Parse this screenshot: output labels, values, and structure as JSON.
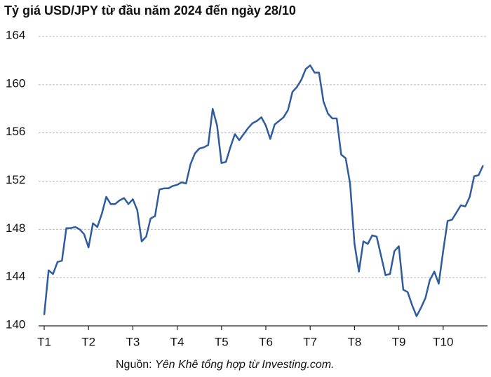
{
  "chart_data": {
    "type": "line",
    "title": "Tỷ giá USD/JPY từ đầu năm 2024 đến ngày 28/10",
    "source": {
      "prefix": "Nguồn:",
      "text": "Yên Khê tổng hợp từ Investing.com."
    },
    "categories": [
      "T1",
      null,
      null,
      null,
      null,
      null,
      null,
      null,
      null,
      null,
      "T2",
      null,
      null,
      null,
      null,
      null,
      null,
      null,
      null,
      null,
      "T3",
      null,
      null,
      null,
      null,
      null,
      null,
      null,
      null,
      null,
      "T4",
      null,
      null,
      null,
      null,
      null,
      null,
      null,
      null,
      null,
      "T5",
      null,
      null,
      null,
      null,
      null,
      null,
      null,
      null,
      null,
      "T6",
      null,
      null,
      null,
      null,
      null,
      null,
      null,
      null,
      null,
      "T7",
      null,
      null,
      null,
      null,
      null,
      null,
      null,
      null,
      null,
      "T8",
      null,
      null,
      null,
      null,
      null,
      null,
      null,
      null,
      null,
      "T9",
      null,
      null,
      null,
      null,
      null,
      null,
      null,
      null,
      null,
      "T10",
      null,
      null,
      null,
      null,
      null,
      null,
      null,
      null,
      null
    ],
    "series": [
      {
        "name": "USD/JPY",
        "color": "#2e5c9e",
        "values": [
          140.9,
          144.6,
          144.3,
          145.3,
          145.4,
          148.1,
          148.1,
          148.2,
          148.0,
          147.6,
          146.5,
          148.5,
          148.2,
          149.3,
          150.7,
          150.1,
          150.1,
          150.4,
          150.6,
          150.1,
          150.5,
          149.6,
          147.0,
          147.4,
          148.9,
          149.1,
          151.3,
          151.4,
          151.4,
          151.6,
          151.7,
          151.9,
          151.8,
          153.4,
          154.3,
          154.7,
          154.8,
          155.0,
          158.0,
          156.6,
          153.5,
          153.6,
          154.8,
          155.9,
          155.4,
          155.9,
          156.4,
          156.8,
          157.0,
          157.3,
          156.6,
          155.5,
          156.7,
          157.0,
          157.3,
          157.9,
          159.4,
          159.8,
          160.4,
          161.3,
          161.6,
          161.0,
          161.0,
          158.6,
          157.6,
          157.2,
          157.2,
          154.2,
          153.9,
          151.8,
          146.8,
          144.5,
          147.0,
          146.8,
          147.5,
          147.4,
          145.8,
          144.2,
          144.3,
          146.2,
          146.6,
          143.0,
          142.8,
          141.7,
          140.8,
          141.5,
          142.3,
          143.8,
          144.5,
          143.5,
          146.2,
          148.7,
          148.8,
          149.4,
          150.0,
          149.9,
          150.7,
          152.4,
          152.5,
          153.3
        ]
      }
    ],
    "ylim": [
      140,
      164
    ],
    "yticks": [
      140,
      144,
      148,
      152,
      156,
      160,
      164
    ],
    "grid": true
  }
}
